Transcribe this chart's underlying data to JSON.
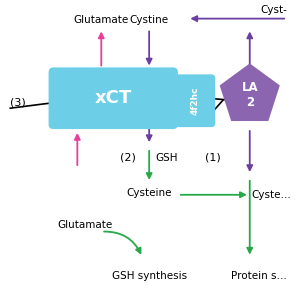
{
  "bg_color": "#ffffff",
  "cell_membrane_color": "#000000",
  "xct_color": "#6dcee8",
  "xct_label": "xCT",
  "f2hc_color": "#6dcee8",
  "f2hc_label": "4f2hc",
  "lat_color": "#8b65b0",
  "lat_label": "LA\n2",
  "arrow_magenta": "#e8409a",
  "arrow_purple": "#6a3fa0",
  "arrow_green": "#28a848",
  "label_color": "#000000",
  "fig_w": 2.99,
  "fig_h": 2.99
}
